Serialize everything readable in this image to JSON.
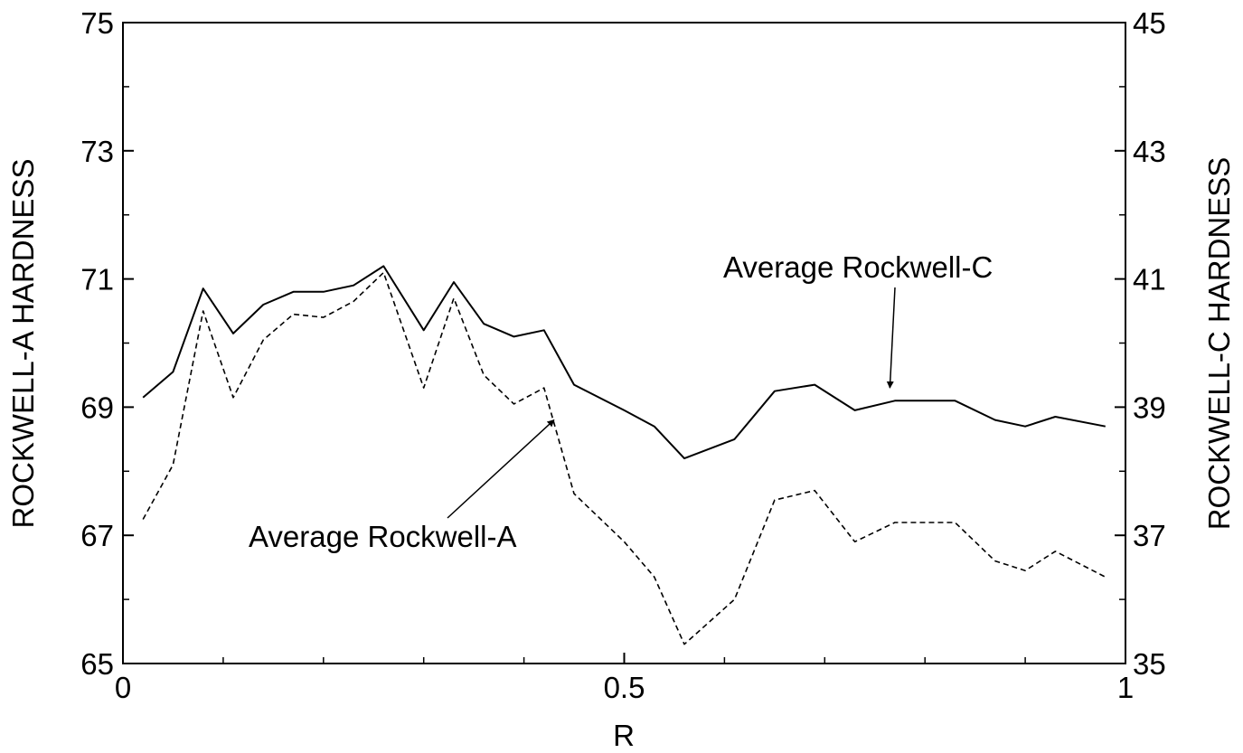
{
  "chart_data": {
    "type": "line",
    "xlabel": "R",
    "ylabel_left": "ROCKWELL-A HARDNESS",
    "ylabel_right": "ROCKWELL-C HARDNESS",
    "xlim": [
      0,
      1
    ],
    "ylim_left": [
      65,
      75
    ],
    "ylim_right": [
      35,
      45
    ],
    "x_ticks": [
      0,
      0.5,
      1
    ],
    "x_tick_labels": [
      "0",
      "0.5",
      "1"
    ],
    "y_left_ticks": [
      65,
      67,
      69,
      71,
      73,
      75
    ],
    "y_left_tick_labels": [
      "65",
      "67",
      "69",
      "71",
      "73",
      "75"
    ],
    "y_right_ticks": [
      35,
      37,
      39,
      41,
      43,
      45
    ],
    "y_right_tick_labels": [
      "35",
      "37",
      "39",
      "41",
      "43",
      "45"
    ],
    "grid": false,
    "x": [
      0.02,
      0.05,
      0.08,
      0.11,
      0.14,
      0.17,
      0.2,
      0.23,
      0.26,
      0.3,
      0.33,
      0.36,
      0.39,
      0.42,
      0.45,
      0.5,
      0.53,
      0.56,
      0.61,
      0.65,
      0.69,
      0.73,
      0.77,
      0.8,
      0.83,
      0.87,
      0.9,
      0.93,
      0.98
    ],
    "series": [
      {
        "name": "Average Rockwell-C",
        "axis": "right",
        "style": "solid",
        "values": [
          39.15,
          39.55,
          40.85,
          40.15,
          40.6,
          40.8,
          40.8,
          40.9,
          41.2,
          40.2,
          40.95,
          40.3,
          40.1,
          40.2,
          39.35,
          38.95,
          38.7,
          38.2,
          38.5,
          39.25,
          39.35,
          38.95,
          39.1,
          39.1,
          39.1,
          38.8,
          38.7,
          38.85,
          38.7
        ]
      },
      {
        "name": "Average Rockwell-A",
        "axis": "left",
        "style": "dashed",
        "values": [
          67.25,
          68.1,
          70.5,
          69.15,
          70.05,
          70.45,
          70.4,
          70.65,
          71.1,
          69.3,
          70.7,
          69.5,
          69.05,
          69.3,
          67.65,
          66.9,
          66.35,
          65.3,
          66.0,
          67.55,
          67.7,
          66.9,
          67.2,
          67.2,
          67.2,
          66.6,
          66.45,
          66.75,
          66.35
        ]
      }
    ],
    "annotations": [
      {
        "text": "Average Rockwell-C",
        "series": "Average Rockwell-C",
        "arrow_to_x": 0.765,
        "arrow_to_y": 39.3
      },
      {
        "text": "Average Rockwell-A",
        "series": "Average Rockwell-A",
        "arrow_to_x": 0.43,
        "arrow_to_y": 68.8
      }
    ]
  }
}
